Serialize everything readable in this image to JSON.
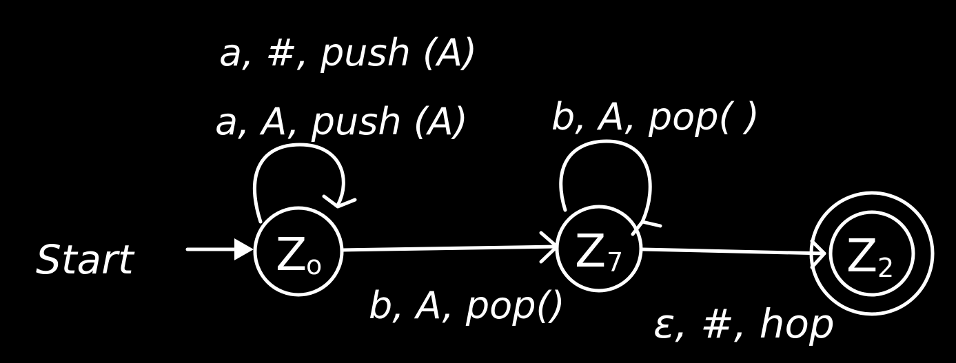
{
  "colors": {
    "background": "#000000",
    "ink": "#ffffff"
  },
  "start_label": "Start",
  "states": [
    {
      "id": "z0",
      "label": "Z",
      "subscript": "o",
      "accepting": false
    },
    {
      "id": "z1",
      "label": "Z",
      "subscript": "7",
      "accepting": false
    },
    {
      "id": "z2",
      "label": "Z",
      "subscript": "2",
      "accepting": true
    }
  ],
  "transitions": {
    "z0_loop_1": "a, #, push (A)",
    "z0_loop_2": "a, A, push (A)",
    "z0_to_z1": "b, A, pop()",
    "z1_loop": "b, A, pop( )",
    "z1_to_z2": "ε, #, hop"
  }
}
